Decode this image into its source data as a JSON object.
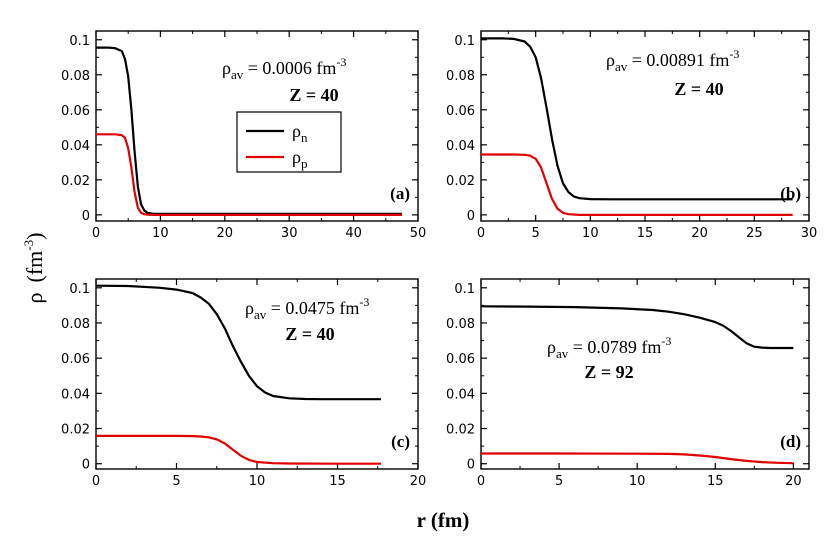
{
  "figure": {
    "xlabel": "r (fm)",
    "ylabel_symbol": "ρ",
    "ylabel_unit": "(fm",
    "ylabel_exp": "-3",
    "ylabel_close": ")"
  },
  "legend": {
    "entries": [
      {
        "symbol": "ρ",
        "sub": "n",
        "color": "#000000"
      },
      {
        "symbol": "ρ",
        "sub": "p",
        "color": "#e00000"
      }
    ]
  },
  "chart_data": [
    {
      "type": "line",
      "panel": "(a)",
      "xlim": [
        0,
        50
      ],
      "ylim": [
        -0.0035,
        0.105
      ],
      "xticks": [
        "0",
        "10",
        "20",
        "30",
        "40",
        "50"
      ],
      "yticks": [
        "0",
        "0.02",
        "0.04",
        "0.06",
        "0.08",
        "0.1"
      ],
      "annotation": {
        "rho": "ρ",
        "sub": "av",
        "value": "= 0.0006 fm",
        "exp": "-3",
        "z": "Z = 40"
      },
      "series": [
        {
          "name": "ρn",
          "color": "#000000",
          "x": [
            0,
            1,
            2,
            3,
            4,
            4.5,
            5,
            5.5,
            6,
            6.5,
            7,
            7.5,
            8,
            9,
            10,
            20,
            30,
            40,
            47.5
          ],
          "y": [
            0.0955,
            0.0955,
            0.0955,
            0.0952,
            0.0935,
            0.089,
            0.079,
            0.06,
            0.036,
            0.016,
            0.006,
            0.0025,
            0.0012,
            0.0006,
            0.0006,
            0.0006,
            0.0006,
            0.0006,
            0.0006
          ]
        },
        {
          "name": "ρp",
          "color": "#e00000",
          "x": [
            0,
            1,
            2,
            3,
            4,
            4.5,
            5,
            5.5,
            6,
            6.5,
            7,
            7.5,
            8,
            9,
            10,
            20,
            30,
            40,
            47.5
          ],
          "y": [
            0.046,
            0.046,
            0.046,
            0.046,
            0.0455,
            0.044,
            0.038,
            0.027,
            0.013,
            0.004,
            0.0012,
            0.0004,
            0.0001,
            0,
            0,
            0,
            0,
            0,
            0
          ]
        }
      ]
    },
    {
      "type": "line",
      "panel": "(b)",
      "xlim": [
        0,
        30
      ],
      "ylim": [
        -0.0035,
        0.105
      ],
      "xticks": [
        "0",
        "5",
        "10",
        "15",
        "20",
        "25",
        "30"
      ],
      "yticks": [
        "0",
        "0.02",
        "0.04",
        "0.06",
        "0.08",
        "0.1"
      ],
      "annotation": {
        "rho": "ρ",
        "sub": "av",
        "value": "= 0.00891 fm",
        "exp": "-3",
        "z": "Z = 40"
      },
      "series": [
        {
          "name": "ρn",
          "color": "#000000",
          "x": [
            0,
            1,
            2,
            3,
            4,
            4.5,
            5,
            5.5,
            6,
            6.5,
            7,
            7.5,
            8,
            8.5,
            9,
            10,
            12,
            15,
            20,
            25,
            28.5
          ],
          "y": [
            0.1008,
            0.1008,
            0.1008,
            0.1005,
            0.099,
            0.096,
            0.09,
            0.078,
            0.061,
            0.043,
            0.028,
            0.018,
            0.013,
            0.0105,
            0.0095,
            0.009,
            0.0089,
            0.0089,
            0.0089,
            0.0089,
            0.0089
          ]
        },
        {
          "name": "ρp",
          "color": "#e00000",
          "x": [
            0,
            1,
            2,
            3,
            4,
            4.5,
            5,
            5.5,
            6,
            6.5,
            7,
            7.5,
            8,
            9,
            10,
            15,
            20,
            25,
            28.5
          ],
          "y": [
            0.0345,
            0.0345,
            0.0345,
            0.0345,
            0.0343,
            0.0338,
            0.032,
            0.027,
            0.018,
            0.009,
            0.0035,
            0.0012,
            0.0004,
            0,
            0,
            0,
            0,
            0,
            0
          ]
        }
      ]
    },
    {
      "type": "line",
      "panel": "(c)",
      "xlim": [
        0,
        20
      ],
      "ylim": [
        -0.003,
        0.105
      ],
      "xticks": [
        "0",
        "5",
        "10",
        "15",
        "20"
      ],
      "yticks": [
        "0",
        "0.02",
        "0.04",
        "0.06",
        "0.08",
        "0.1"
      ],
      "annotation": {
        "rho": "ρ",
        "sub": "av",
        "value": "= 0.0475 fm",
        "exp": "-3",
        "z": "Z = 40"
      },
      "series": [
        {
          "name": "ρn",
          "color": "#000000",
          "x": [
            0,
            2,
            4,
            5,
            6,
            6.5,
            7,
            7.5,
            8,
            8.5,
            9,
            9.5,
            10,
            10.5,
            11,
            12,
            13,
            14,
            15,
            17.7
          ],
          "y": [
            0.1012,
            0.101,
            0.1,
            0.099,
            0.097,
            0.0945,
            0.091,
            0.085,
            0.077,
            0.067,
            0.058,
            0.05,
            0.044,
            0.0405,
            0.0385,
            0.0372,
            0.0368,
            0.0367,
            0.0367,
            0.0367
          ]
        },
        {
          "name": "ρp",
          "color": "#e00000",
          "x": [
            0,
            2,
            4,
            5,
            6,
            6.5,
            7,
            7.5,
            8,
            8.5,
            9,
            9.5,
            10,
            11,
            12,
            15,
            17.7
          ],
          "y": [
            0.0158,
            0.0158,
            0.0158,
            0.0158,
            0.0157,
            0.0155,
            0.015,
            0.0138,
            0.0115,
            0.008,
            0.0045,
            0.0022,
            0.001,
            0.0003,
            0.0001,
            0,
            0
          ]
        }
      ]
    },
    {
      "type": "line",
      "panel": "(d)",
      "xlim": [
        0,
        21
      ],
      "ylim": [
        -0.003,
        0.105
      ],
      "xticks": [
        "0",
        "5",
        "10",
        "15",
        "20"
      ],
      "yticks": [
        "0",
        "0.02",
        "0.04",
        "0.06",
        "0.08",
        "0.1"
      ],
      "annotation": {
        "rho": "ρ",
        "sub": "av",
        "value": "= 0.0789 fm",
        "exp": "-3",
        "z": "Z = 92"
      },
      "series": [
        {
          "name": "ρn",
          "color": "#000000",
          "x": [
            0,
            3,
            6,
            9,
            11,
            12,
            13,
            14,
            15,
            15.5,
            16,
            16.5,
            17,
            17.5,
            18,
            18.5,
            19,
            20
          ],
          "y": [
            0.0895,
            0.0893,
            0.089,
            0.0883,
            0.0874,
            0.0864,
            0.085,
            0.083,
            0.0805,
            0.0785,
            0.0755,
            0.072,
            0.0685,
            0.0665,
            0.066,
            0.0658,
            0.0658,
            0.0658
          ]
        },
        {
          "name": "ρp",
          "color": "#e00000",
          "x": [
            0,
            5,
            10,
            12,
            13,
            14,
            15,
            16,
            17,
            18,
            19,
            20
          ],
          "y": [
            0.0058,
            0.0058,
            0.0057,
            0.0056,
            0.0053,
            0.0047,
            0.0038,
            0.0026,
            0.0016,
            0.0009,
            0.0005,
            0.0003
          ]
        }
      ]
    }
  ]
}
